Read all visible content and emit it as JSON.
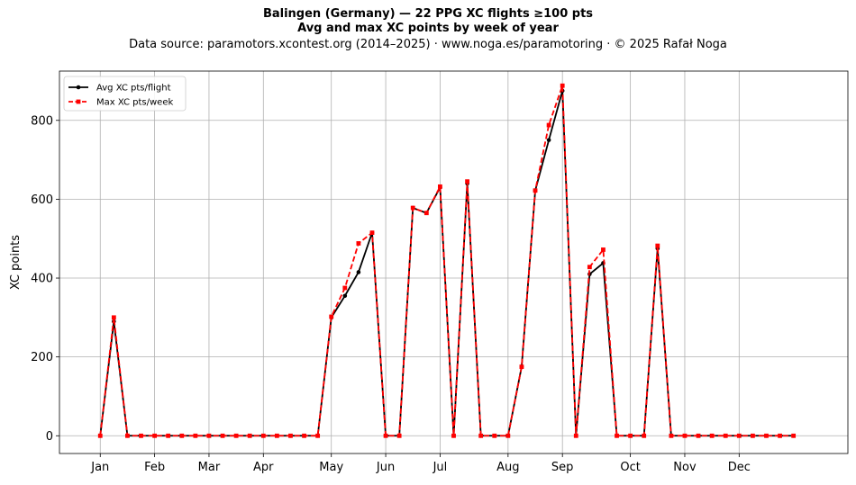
{
  "title": "Balingen (Germany)  —  22 PPG XC flights ≥100 pts",
  "subtitle": "Avg and max XC points by week of year",
  "source": "Data source: paramotors.xcontest.org (2014–2025)  ·  www.noga.es/paramotoring  ·  © 2025 Rafał Noga",
  "chart_data": {
    "type": "line",
    "ylabel": "XC points",
    "xlabel": "",
    "ylim": [
      -45,
      925
    ],
    "xlim": [
      -3,
      55
    ],
    "yticks": [
      0,
      200,
      400,
      600,
      800
    ],
    "grid": true,
    "legend_placement": "top-left",
    "month_ticks": [
      {
        "label": "Jan",
        "week": 0
      },
      {
        "label": "Feb",
        "week": 4
      },
      {
        "label": "Mar",
        "week": 8
      },
      {
        "label": "Apr",
        "week": 12
      },
      {
        "label": "May",
        "week": 17
      },
      {
        "label": "Jun",
        "week": 21
      },
      {
        "label": "Jul",
        "week": 25
      },
      {
        "label": "Aug",
        "week": 30
      },
      {
        "label": "Sep",
        "week": 34
      },
      {
        "label": "Oct",
        "week": 39
      },
      {
        "label": "Nov",
        "week": 43
      },
      {
        "label": "Dec",
        "week": 47
      }
    ],
    "x": [
      0,
      1,
      2,
      3,
      4,
      5,
      6,
      7,
      8,
      9,
      10,
      11,
      12,
      13,
      14,
      15,
      16,
      17,
      18,
      19,
      20,
      21,
      22,
      23,
      24,
      25,
      26,
      27,
      28,
      29,
      30,
      31,
      32,
      33,
      34,
      35,
      36,
      37,
      38,
      39,
      40,
      41,
      42,
      43,
      44,
      45,
      46,
      47,
      48,
      49,
      50,
      51
    ],
    "series": [
      {
        "name": "Avg XC pts/flight",
        "color": "#000000",
        "style": "solid",
        "marker": "circle",
        "values": [
          0,
          290,
          0,
          0,
          0,
          0,
          0,
          0,
          0,
          0,
          0,
          0,
          0,
          0,
          0,
          0,
          0,
          300,
          355,
          415,
          515,
          0,
          0,
          578,
          565,
          630,
          0,
          640,
          0,
          0,
          0,
          175,
          622,
          750,
          875,
          0,
          410,
          438,
          0,
          0,
          0,
          475,
          0,
          0,
          0,
          0,
          0,
          0,
          0,
          0,
          0,
          0
        ]
      },
      {
        "name": "Max XC pts/week",
        "color": "#ff0000",
        "style": "dashed",
        "marker": "square",
        "values": [
          0,
          300,
          0,
          0,
          0,
          0,
          0,
          0,
          0,
          0,
          0,
          0,
          0,
          0,
          0,
          0,
          0,
          302,
          375,
          488,
          515,
          0,
          0,
          578,
          565,
          632,
          0,
          645,
          0,
          0,
          0,
          175,
          622,
          788,
          888,
          0,
          428,
          472,
          0,
          0,
          0,
          482,
          0,
          0,
          0,
          0,
          0,
          0,
          0,
          0,
          0,
          0
        ]
      }
    ]
  }
}
